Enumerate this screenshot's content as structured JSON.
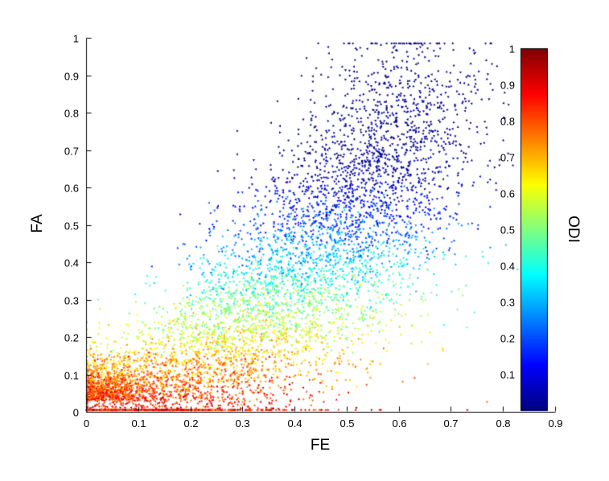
{
  "colors": {
    "background": "#ffffff",
    "axis": "#000000",
    "text": "#000000"
  },
  "chart_data": {
    "type": "scatter",
    "title": "",
    "xlabel": "FE",
    "ylabel": "FA",
    "colorbar_label": "ODI",
    "xlim": [
      0,
      0.9
    ],
    "ylim": [
      0,
      1
    ],
    "colorbar_lim": [
      0,
      1
    ],
    "grid": false,
    "colormap": "jet",
    "marker": "small-triangle",
    "x_ticks": [
      "0",
      "0.1",
      "0.2",
      "0.3",
      "0.4",
      "0.5",
      "0.6",
      "0.7",
      "0.8",
      "0.9"
    ],
    "y_ticks": [
      "0",
      "0.1",
      "0.2",
      "0.3",
      "0.4",
      "0.5",
      "0.6",
      "0.7",
      "0.8",
      "0.9",
      "1"
    ],
    "colorbar_ticks": [
      "1",
      "0.9",
      "0.8",
      "0.7",
      "0.6",
      "0.5",
      "0.4",
      "0.3",
      "0.2",
      "0.1"
    ],
    "n_points": 6500,
    "description": "Dense scatter of FA vs FE colored by ODI (jet colormap). Low-FA points (FA<0.15, FE<0.45) are red/orange/yellow (ODI~0.6-0.9); mid FA~0.2-0.35 are green/cyan (ODI~0.4-0.55); the large upper cloud (FE 0.35-0.65, FA 0.3-0.95) is blue to dark blue (ODI<0.3), densest near FE~0.5-0.6, FA~0.5-0.7.",
    "generation": {
      "seed": 7,
      "t_exp": 0.85,
      "origin_frac": 0.1,
      "fe_base": 0.03,
      "fe_scale": 0.62,
      "fe_noise": 0.085,
      "fe_max": 0.85,
      "fa_base": 0.015,
      "fa_scale": 0.8,
      "fa_exp": 1.6,
      "fa_noise": 0.11,
      "fa_skew": 1.5,
      "odi_base": 0.88,
      "odi_slope": 1.35,
      "odi_noise": 0.07
    }
  }
}
